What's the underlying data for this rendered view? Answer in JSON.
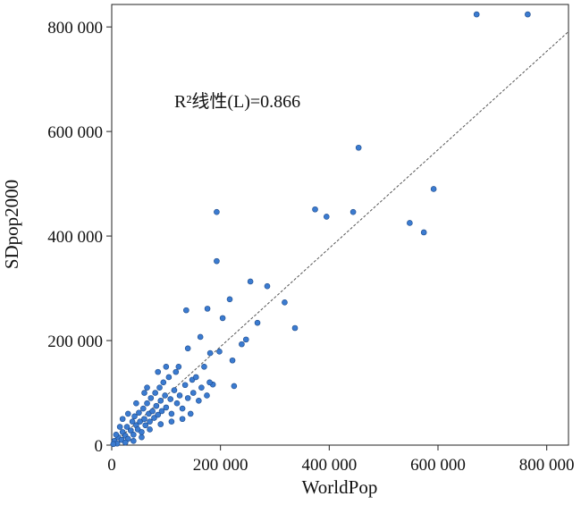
{
  "chart_data": {
    "type": "scatter",
    "x_label": "WorldPop",
    "y_label": "SDpop2000",
    "annotation": "R²线性(L)=0.866",
    "xlim": [
      0,
      840000
    ],
    "ylim": [
      0,
      843000
    ],
    "xticks": [
      {
        "value": 0,
        "label": "0"
      },
      {
        "value": 200000,
        "label": "200 000"
      },
      {
        "value": 400000,
        "label": "400 000"
      },
      {
        "value": 600000,
        "label": "600 000"
      },
      {
        "value": 800000,
        "label": "800 000"
      }
    ],
    "yticks": [
      {
        "value": 0,
        "label": "0"
      },
      {
        "value": 200000,
        "label": "200 000"
      },
      {
        "value": 400000,
        "label": "400 000"
      },
      {
        "value": 600000,
        "label": "600 000"
      },
      {
        "value": 800000,
        "label": "800 000"
      }
    ],
    "trendline": {
      "x": [
        0,
        840000
      ],
      "y": [
        0,
        791000
      ]
    },
    "color": "#3b7bd0",
    "x": [
      671000,
      765000,
      454000,
      592000,
      374000,
      395000,
      444000,
      548000,
      574000,
      193000,
      193000,
      255000,
      286000,
      217000,
      318000,
      337000,
      137000,
      176000,
      204000,
      268000,
      239000,
      247000,
      222000,
      163000,
      198000,
      225000,
      186000,
      140000,
      123000,
      181000,
      148000,
      5000,
      10000,
      12000,
      18000,
      20000,
      25000,
      28000,
      30000,
      35000,
      38000,
      40000,
      42000,
      45000,
      48000,
      50000,
      52000,
      55000,
      58000,
      60000,
      62000,
      65000,
      68000,
      70000,
      72000,
      75000,
      78000,
      80000,
      82000,
      85000,
      88000,
      90000,
      92000,
      95000,
      98000,
      100000,
      105000,
      108000,
      110000,
      115000,
      118000,
      120000,
      125000,
      130000,
      135000,
      140000,
      145000,
      150000,
      155000,
      160000,
      165000,
      170000,
      175000,
      180000,
      30000,
      45000,
      60000,
      20000,
      15000,
      70000,
      90000,
      110000,
      130000,
      100000,
      85000,
      65000,
      8000,
      3000,
      25000,
      40000,
      55000
    ],
    "values": [
      824000,
      824000,
      569000,
      490000,
      451000,
      437000,
      446000,
      425000,
      407000,
      446000,
      352000,
      313000,
      304000,
      279000,
      273000,
      224000,
      258000,
      261000,
      243000,
      234000,
      193000,
      202000,
      162000,
      207000,
      179000,
      113000,
      116000,
      185000,
      150000,
      176000,
      125000,
      8000,
      3000,
      15000,
      10000,
      25000,
      18000,
      35000,
      12000,
      28000,
      45000,
      20000,
      55000,
      38000,
      30000,
      62000,
      45000,
      25000,
      70000,
      50000,
      38000,
      80000,
      60000,
      45000,
      90000,
      65000,
      52000,
      100000,
      75000,
      58000,
      110000,
      85000,
      65000,
      120000,
      95000,
      72000,
      130000,
      88000,
      60000,
      105000,
      140000,
      80000,
      95000,
      70000,
      115000,
      90000,
      60000,
      100000,
      130000,
      85000,
      110000,
      150000,
      95000,
      120000,
      60000,
      80000,
      100000,
      50000,
      35000,
      30000,
      40000,
      45000,
      50000,
      150000,
      140000,
      110000,
      20000,
      2000,
      5000,
      8000,
      15000
    ]
  }
}
